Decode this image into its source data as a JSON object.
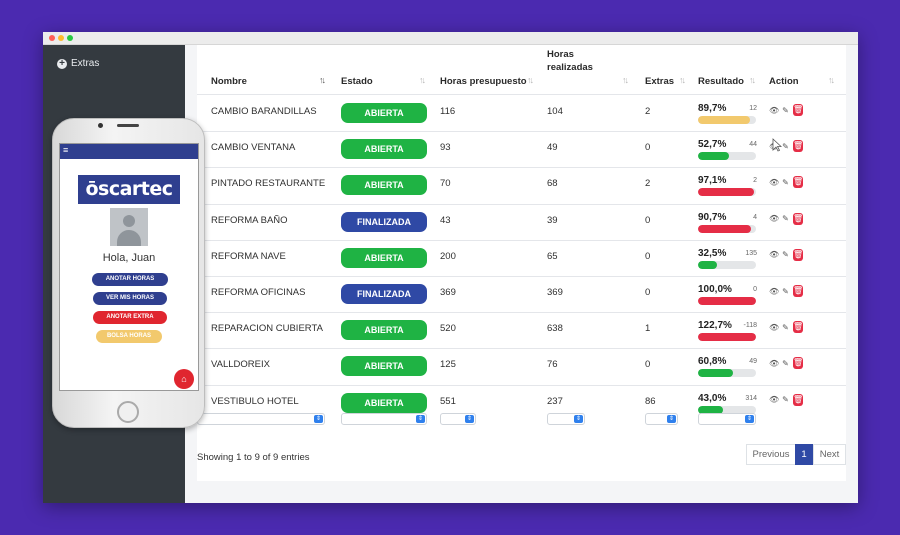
{
  "sidebar": {
    "extras_label": "Extras"
  },
  "table": {
    "headers": {
      "nombre": "Nombre",
      "estado": "Estado",
      "horas_presupuesto": "Horas presupuesto",
      "horas_realizadas": "Horas realizadas",
      "extras": "Extras",
      "resultado": "Resultado",
      "action": "Action"
    },
    "rows": [
      {
        "nombre": "CAMBIO BARANDILLAS",
        "estado": "ABIERTA",
        "estado_color": "#1fb344",
        "presupuesto": "116",
        "realizadas": "104",
        "extras": "2",
        "resultado": "89,7%",
        "resto": "12",
        "progress": 0.897,
        "bar_color": "#f2c96d"
      },
      {
        "nombre": "CAMBIO VENTANA",
        "estado": "ABIERTA",
        "estado_color": "#1fb344",
        "presupuesto": "93",
        "realizadas": "49",
        "extras": "0",
        "resultado": "52,7%",
        "resto": "44",
        "progress": 0.527,
        "bar_color": "#1fb344"
      },
      {
        "nombre": "PINTADO RESTAURANTE",
        "estado": "ABIERTA",
        "estado_color": "#1fb344",
        "presupuesto": "70",
        "realizadas": "68",
        "extras": "2",
        "resultado": "97,1%",
        "resto": "2",
        "progress": 0.971,
        "bar_color": "#e52d46"
      },
      {
        "nombre": "REFORMA BAÑO",
        "estado": "FINALIZADA",
        "estado_color": "#2f49a5",
        "presupuesto": "43",
        "realizadas": "39",
        "extras": "0",
        "resultado": "90,7%",
        "resto": "4",
        "progress": 0.907,
        "bar_color": "#e52d46"
      },
      {
        "nombre": "REFORMA NAVE",
        "estado": "ABIERTA",
        "estado_color": "#1fb344",
        "presupuesto": "200",
        "realizadas": "65",
        "extras": "0",
        "resultado": "32,5%",
        "resto": "135",
        "progress": 0.325,
        "bar_color": "#1fb344"
      },
      {
        "nombre": "REFORMA OFICINAS",
        "estado": "FINALIZADA",
        "estado_color": "#2f49a5",
        "presupuesto": "369",
        "realizadas": "369",
        "extras": "0",
        "resultado": "100,0%",
        "resto": "0",
        "progress": 1.0,
        "bar_color": "#e52d46"
      },
      {
        "nombre": "REPARACION CUBIERTA",
        "estado": "ABIERTA",
        "estado_color": "#1fb344",
        "presupuesto": "520",
        "realizadas": "638",
        "extras": "1",
        "resultado": "122,7%",
        "resto": "-118",
        "progress": 1.0,
        "bar_color": "#e52d46"
      },
      {
        "nombre": "VALLDOREIX",
        "estado": "ABIERTA",
        "estado_color": "#1fb344",
        "presupuesto": "125",
        "realizadas": "76",
        "extras": "0",
        "resultado": "60,8%",
        "resto": "49",
        "progress": 0.608,
        "bar_color": "#1fb344"
      },
      {
        "nombre": "VESTIBULO HOTEL",
        "estado": "ABIERTA",
        "estado_color": "#1fb344",
        "presupuesto": "551",
        "realizadas": "237",
        "extras": "86",
        "resultado": "43,0%",
        "resto": "314",
        "progress": 0.43,
        "bar_color": "#1fb344"
      }
    ]
  },
  "footer": {
    "info": "Showing 1 to 9 of 9 entries",
    "previous": "Previous",
    "page": "1",
    "next": "Next"
  },
  "phone": {
    "logo": "ōscartec",
    "greeting": "Hola, Juan",
    "buttons": [
      {
        "label": "ANOTAR HORAS",
        "color": "#2f3f8f"
      },
      {
        "label": "VER MIS HORAS",
        "color": "#2f3f8f"
      },
      {
        "label": "ANOTAR EXTRA",
        "color": "#e0262f"
      },
      {
        "label": "BOLSA HORAS",
        "color": "#f2c96d"
      }
    ]
  }
}
